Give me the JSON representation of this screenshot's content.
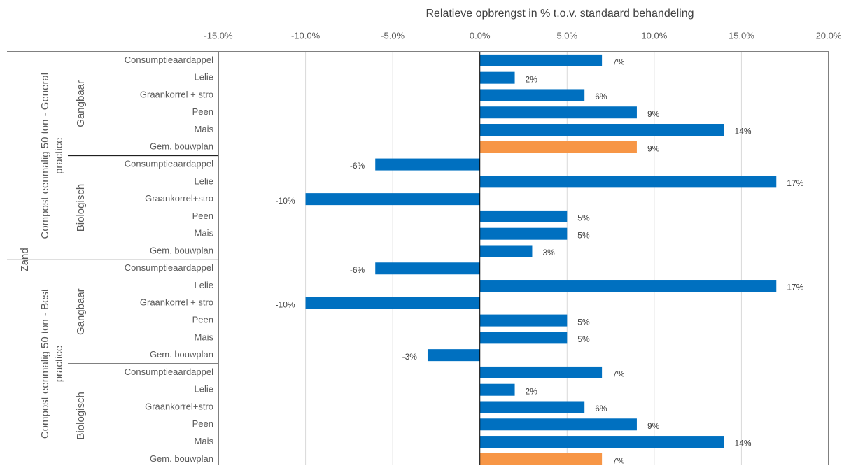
{
  "chart_data": {
    "type": "bar",
    "orientation": "horizontal",
    "x_label": "Relatieve opbrengst in % t.o.v. standaard behandeling",
    "xlim": [
      -15,
      20
    ],
    "xticks": [
      {
        "value": -15,
        "label": "-15.0%"
      },
      {
        "value": -10,
        "label": "-10.0%"
      },
      {
        "value": -5,
        "label": "-5.0%"
      },
      {
        "value": 0,
        "label": "0.0%"
      },
      {
        "value": 5,
        "label": "5.0%"
      },
      {
        "value": 10,
        "label": "10.0%"
      },
      {
        "value": 15,
        "label": "15.0%"
      },
      {
        "value": 20,
        "label": "20.0%"
      }
    ],
    "grid": true,
    "outer_group": "Zand",
    "groups": [
      {
        "name": "Compost eenmalig 50 ton - General practice",
        "subgroups": [
          {
            "name": "Gangbaar",
            "categories": [
              "Consumptieaardappel",
              "Lelie",
              "Graankorrel + stro",
              "Peen",
              "Mais",
              "Gem. bouwplan"
            ],
            "values": [
              7,
              2,
              6,
              9,
              14,
              9
            ],
            "value_labels": [
              "7%",
              "2%",
              "6%",
              "9%",
              "14%",
              "9%"
            ],
            "colors": [
              "#0070c0",
              "#0070c0",
              "#0070c0",
              "#0070c0",
              "#0070c0",
              "#f79646"
            ]
          },
          {
            "name": "Biologisch",
            "categories": [
              "Consumptieaardappel",
              "Lelie",
              "Graankorrel+stro",
              "Peen",
              "Mais",
              "Gem. bouwplan"
            ],
            "values": [
              -6,
              17,
              -10,
              5,
              5,
              3
            ],
            "value_labels": [
              "-6%",
              "17%",
              "-10%",
              "5%",
              "5%",
              "3%"
            ],
            "colors": [
              "#0070c0",
              "#0070c0",
              "#0070c0",
              "#0070c0",
              "#0070c0",
              "#0070c0"
            ]
          }
        ]
      },
      {
        "name": "Compost eenmalig 50 ton - Best practice",
        "subgroups": [
          {
            "name": "Gangbaar",
            "categories": [
              "Consumptieaardappel",
              "Lelie",
              "Graankorrel + stro",
              "Peen",
              "Mais",
              "Gem. bouwplan"
            ],
            "values": [
              -6,
              17,
              -10,
              5,
              5,
              -3
            ],
            "value_labels": [
              "-6%",
              "17%",
              "-10%",
              "5%",
              "5%",
              "-3%"
            ],
            "colors": [
              "#0070c0",
              "#0070c0",
              "#0070c0",
              "#0070c0",
              "#0070c0",
              "#0070c0"
            ]
          },
          {
            "name": "Biologisch",
            "categories": [
              "Consumptieaardappel",
              "Lelie",
              "Graankorrel+stro",
              "Peen",
              "Mais",
              "Gem. bouwplan"
            ],
            "values": [
              7,
              2,
              6,
              9,
              14,
              7
            ],
            "value_labels": [
              "7%",
              "2%",
              "6%",
              "9%",
              "14%",
              "7%"
            ],
            "colors": [
              "#0070c0",
              "#0070c0",
              "#0070c0",
              "#0070c0",
              "#0070c0",
              "#f79646"
            ]
          }
        ]
      }
    ]
  }
}
